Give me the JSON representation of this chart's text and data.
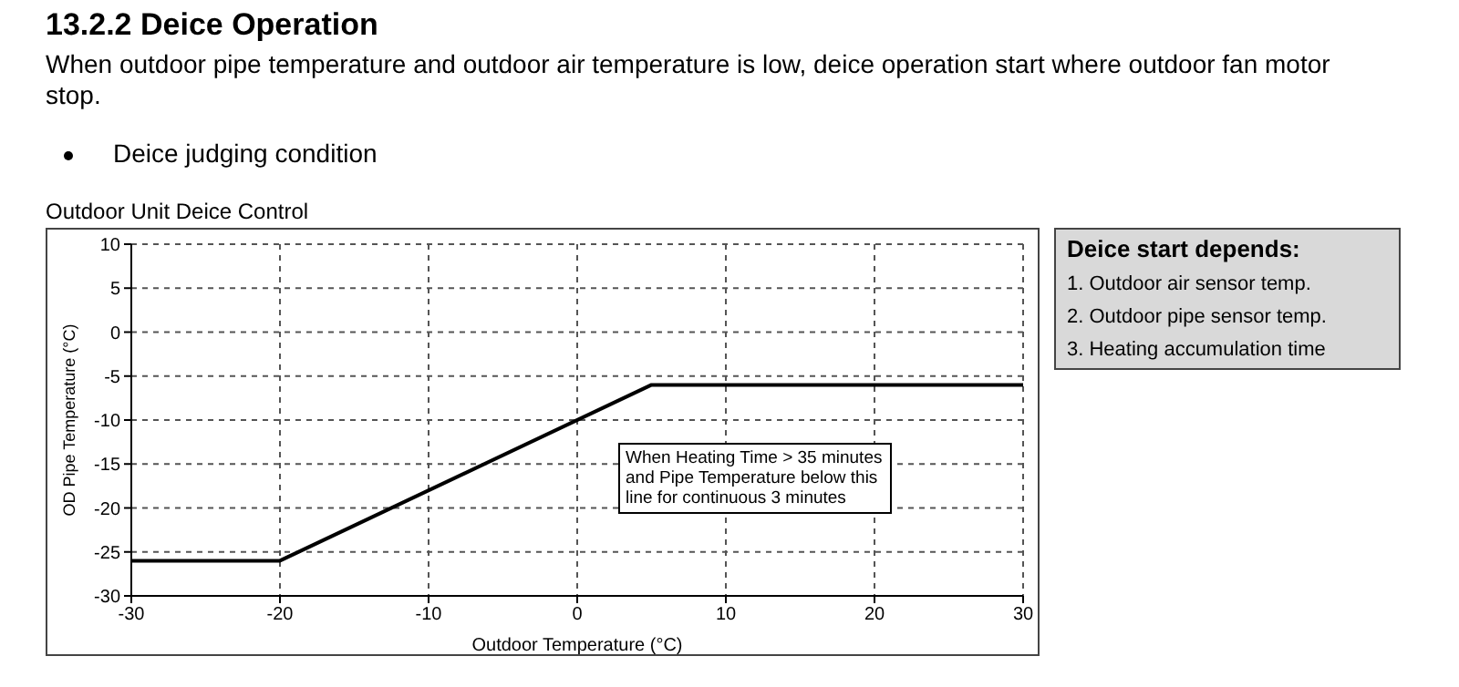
{
  "chart_data": {
    "type": "line",
    "title": "Outdoor Unit Deice Control",
    "xlabel": "Outdoor Temperature (°C)",
    "ylabel": "OD Pipe Temperature (°C)",
    "x": [
      -30,
      -20,
      5,
      30
    ],
    "series": [
      {
        "color": "#000000",
        "values": [
          -26,
          -26,
          -6,
          -6
        ]
      }
    ],
    "xlim": [
      -30,
      30
    ],
    "xticks": [
      -30,
      -20,
      -10,
      0,
      10,
      20,
      30
    ],
    "ylim": [
      -30,
      10
    ],
    "yticks": [
      -30,
      -25,
      -20,
      -15,
      -10,
      -5,
      0,
      5,
      10
    ],
    "grid": true,
    "marker": "none",
    "line_style": "solid",
    "annotations": [
      "13.2.2 Deice Operation",
      "When outdoor pipe temperature and outdoor air temperature is low, deice operation start where outdoor fan motor stop.",
      "Deice judging condition",
      "When Heating Time > 35 minutes and Pipe Temperature below this line for continuous 3 minutes",
      "Deice start depends:",
      "1. Outdoor air sensor temp.",
      "2. Outdoor pipe sensor temp.",
      "3. Heating accumulation time"
    ]
  }
}
